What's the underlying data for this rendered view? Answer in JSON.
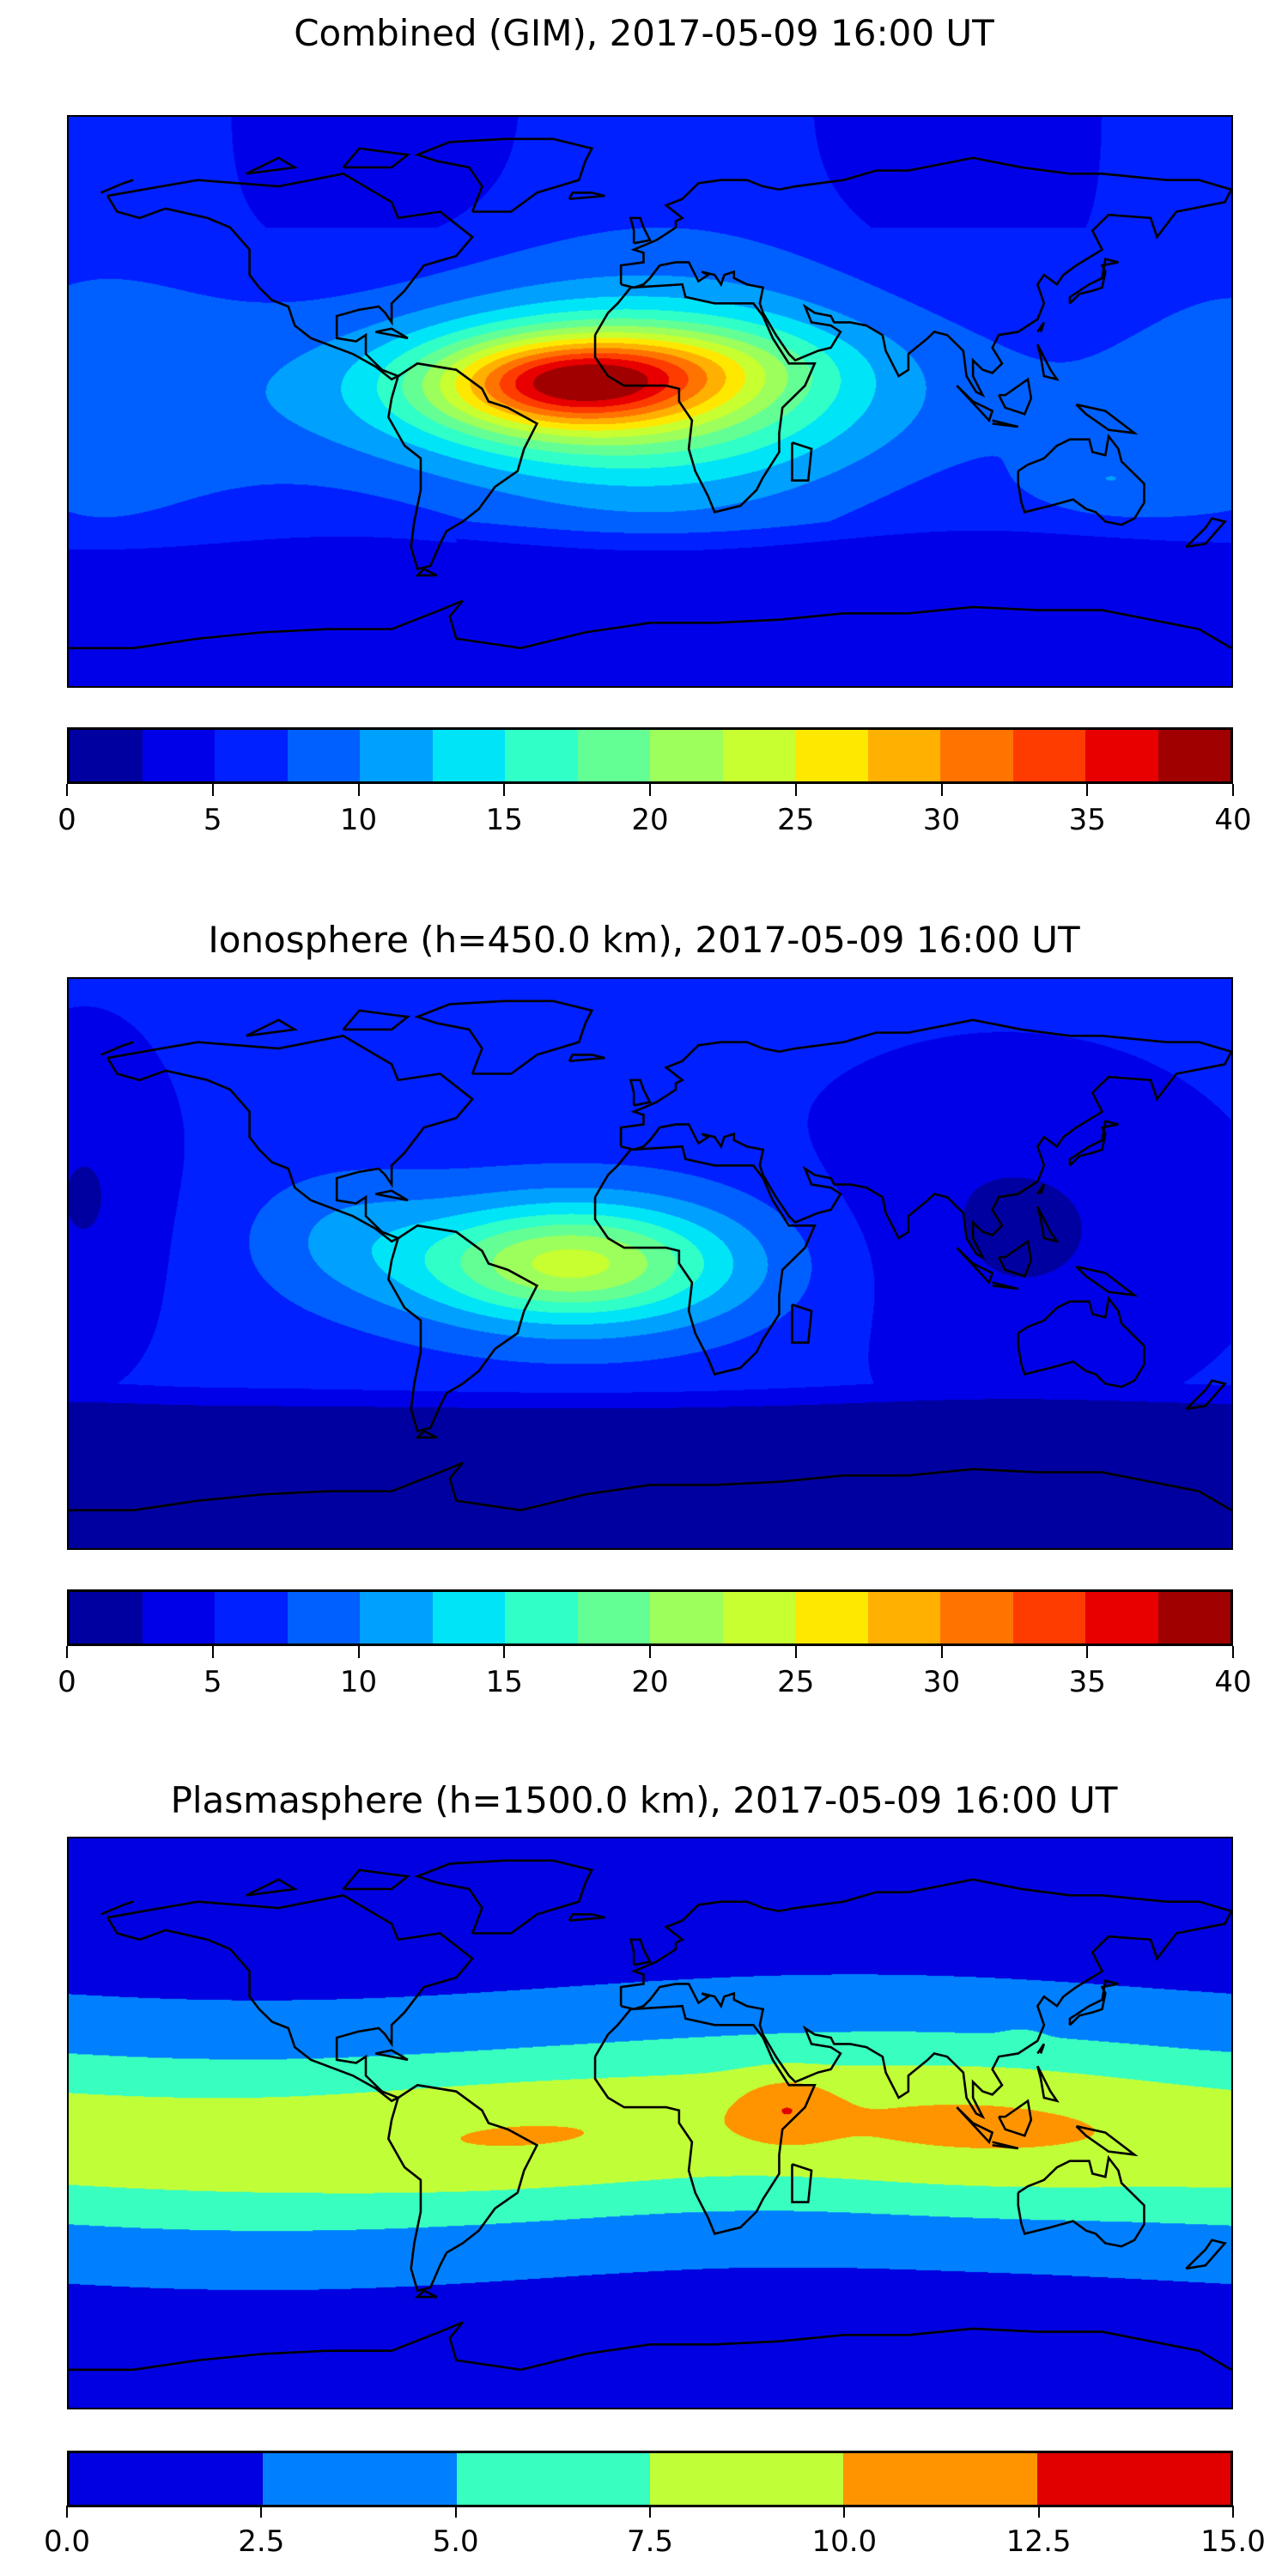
{
  "panels": [
    {
      "title": "Combined (GIM), 2017-05-09 16:00 UT",
      "field": "combined",
      "colorbar": {
        "range": [
          0,
          40
        ],
        "ticks": [
          "0",
          "5",
          "10",
          "15",
          "20",
          "25",
          "30",
          "35",
          "40"
        ],
        "colors": [
          "#0000a0",
          "#0000e8",
          "#0020ff",
          "#0060ff",
          "#00a0ff",
          "#00e4f8",
          "#30ffc8",
          "#64ff94",
          "#9cff5c",
          "#c8ff30",
          "#ffe800",
          "#ffb000",
          "#ff7400",
          "#ff3c00",
          "#e80000",
          "#a00000"
        ]
      }
    },
    {
      "title": "Ionosphere  (h=450.0 km), 2017-05-09 16:00 UT",
      "field": "ionosphere",
      "colorbar": {
        "range": [
          0,
          40
        ],
        "ticks": [
          "0",
          "5",
          "10",
          "15",
          "20",
          "25",
          "30",
          "35",
          "40"
        ],
        "colors": [
          "#0000a0",
          "#0000e8",
          "#0020ff",
          "#0060ff",
          "#00a0ff",
          "#00e4f8",
          "#30ffc8",
          "#64ff94",
          "#9cff5c",
          "#c8ff30",
          "#ffe800",
          "#ffb000",
          "#ff7400",
          "#ff3c00",
          "#e80000",
          "#a00000"
        ]
      }
    },
    {
      "title": "Plasmasphere (h=1500.0 km), 2017-05-09 16:00 UT",
      "field": "plasmasphere",
      "colorbar": {
        "range": [
          0,
          15
        ],
        "ticks": [
          "0.0",
          "2.5",
          "5.0",
          "7.5",
          "10.0",
          "12.5",
          "15.0"
        ],
        "colors": [
          "#0000e0",
          "#0080ff",
          "#38ffc0",
          "#c0ff38",
          "#ff9400",
          "#e00000"
        ]
      }
    }
  ]
}
